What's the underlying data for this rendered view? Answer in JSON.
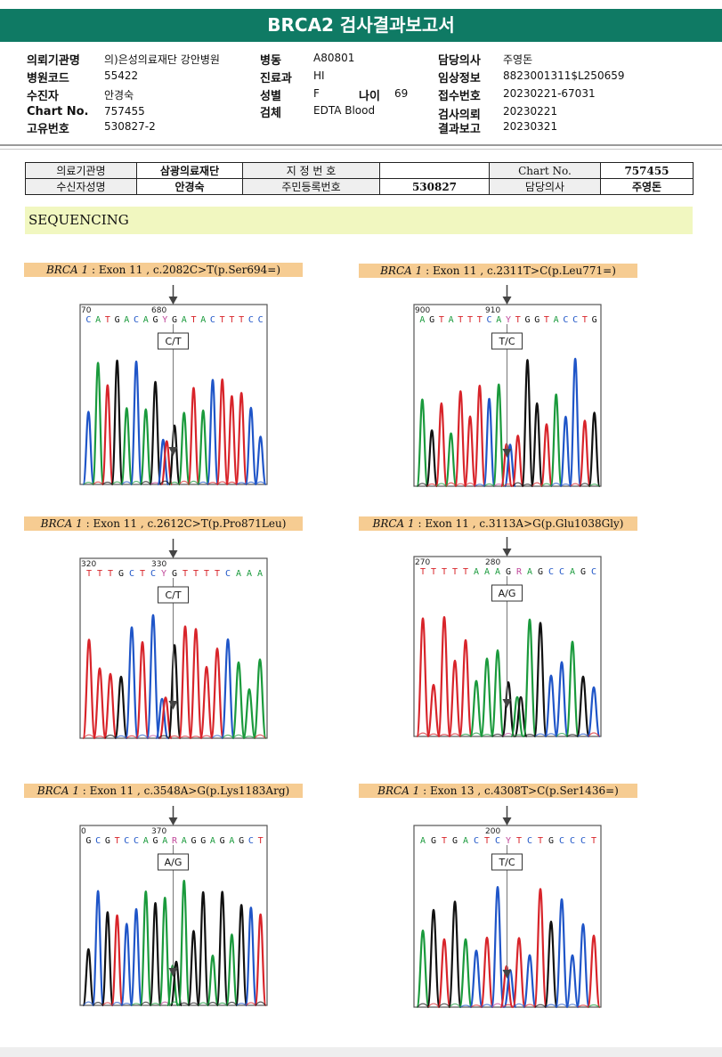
{
  "title": "BRCA2 검사결과보고서",
  "header": {
    "col1": [
      {
        "label": "의뢰기관명",
        "value": "의)은성의료재단 강안병원"
      },
      {
        "label": "병원코드",
        "value": "55422"
      },
      {
        "label": "수진자",
        "value": "안경숙"
      },
      {
        "label": "Chart No.",
        "value": "757455"
      },
      {
        "label": "고유번호",
        "value": "530827-2"
      }
    ],
    "col2": [
      {
        "label": "병동",
        "value": "A80801"
      },
      {
        "label": "진료과",
        "value": "HI"
      },
      {
        "label": "성별",
        "value": "F"
      },
      {
        "label": "검체",
        "value": "EDTA Blood"
      }
    ],
    "age": {
      "label": "나이",
      "value": "69"
    },
    "col3": [
      {
        "label": "담당의사",
        "value": "주영돈"
      },
      {
        "label": "임상정보",
        "value": "8823001311$L250659"
      },
      {
        "label": "접수번호",
        "value": "20230221-67031"
      },
      {
        "label": "검사의뢰",
        "value": "20230221"
      },
      {
        "label": "결과보고",
        "value": "20230321"
      }
    ]
  },
  "info_table": {
    "r1": [
      "의료기관명",
      "삼광의료재단",
      "지 정 번 호",
      "",
      "Chart No.",
      "757455"
    ],
    "r2": [
      "수신자성명",
      "안경숙",
      "주민등록번호",
      "530827",
      "담당의사",
      "주영돈"
    ]
  },
  "section": "SEQUENCING",
  "panels": [
    {
      "gene": "BRCA 1",
      "rest": " : Exon 11 , c.2082C>T(p.Ser694=)",
      "pos_left": "70",
      "pos_right": "680",
      "bases": "CATGACAGYGATACTTTCC",
      "call": "C/T",
      "seed": 3,
      "colors": {
        "A": "#1a9a3c",
        "C": "#1f55c8",
        "G": "#111111",
        "T": "#d8242a",
        "Y": "#c0479a",
        "R": "#c0479a"
      }
    },
    {
      "gene": "BRCA 1",
      "rest": " : Exon 11 , c.2311T>C(p.Leu771=)",
      "pos_left": "900",
      "pos_right": "910",
      "bases": "AGTATTTCAYTGGTACCTG",
      "call": "T/C",
      "seed": 7
    },
    {
      "gene": "BRCA 1",
      "rest": " : Exon 11 , c.2612C>T(p.Pro871Leu)",
      "pos_left": "320",
      "pos_right": "330",
      "bases": "TTTGCTCYGTTTTCAAA",
      "call": "C/T",
      "seed": 11
    },
    {
      "gene": "BRCA 1",
      "rest": " : Exon 11 , c.3113A>G(p.Glu1038Gly)",
      "pos_left": "270",
      "pos_right": "280",
      "bases": "TTTTTAAAGRAGCCAGC",
      "call": "A/G",
      "seed": 17
    },
    {
      "gene": "BRCA 1",
      "rest": " : Exon 11 , c.3548A>G(p.Lys1183Arg)",
      "pos_left": "0",
      "pos_right": "370",
      "bases": "GCGTCCAGARAGGAGAGCT",
      "call": "A/G",
      "seed": 23
    },
    {
      "gene": "BRCA 1",
      "rest": " : Exon 13 , c.4308T>C(p.Ser1436=)",
      "pos_left": "",
      "pos_right": "200",
      "bases": "AGTGACTCYTCTGCCCT",
      "call": "T/C",
      "seed": 29
    }
  ]
}
